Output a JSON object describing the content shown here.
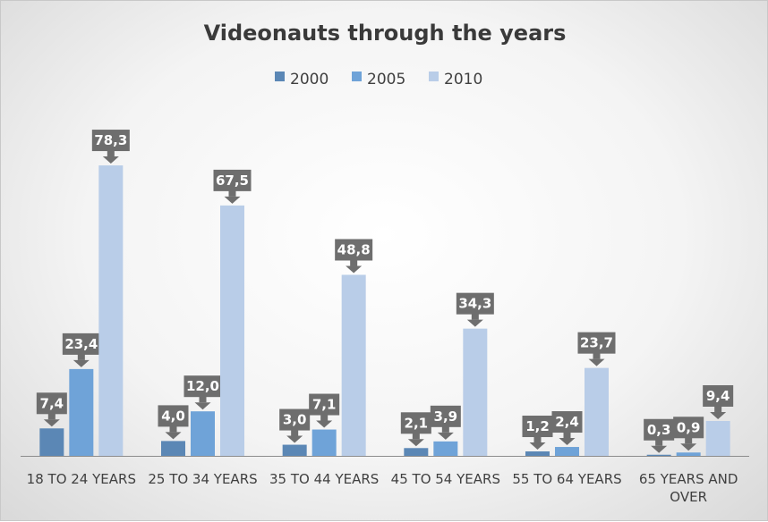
{
  "chart_data": {
    "type": "bar",
    "title": "Videonauts through the years",
    "categories": [
      [
        "18 TO 24 YEARS"
      ],
      [
        "25 TO 34 YEARS"
      ],
      [
        "35 TO 44 YEARS"
      ],
      [
        "45 TO 54 YEARS"
      ],
      [
        "55 TO 64 YEARS"
      ],
      [
        "65 YEARS AND",
        "OVER"
      ]
    ],
    "series": [
      {
        "name": "2000",
        "color": "#5b87b5",
        "values": [
          7.4,
          4.0,
          3.0,
          2.1,
          1.2,
          0.3
        ],
        "labels": [
          "7,4",
          "4,0",
          "3,0",
          "2,1",
          "1,2",
          "0,3"
        ]
      },
      {
        "name": "2005",
        "color": "#6fa3d8",
        "values": [
          23.4,
          12.0,
          7.1,
          3.9,
          2.4,
          0.9
        ],
        "labels": [
          "23,4",
          "12,0",
          "7,1",
          "3,9",
          "2,4",
          "0,9"
        ]
      },
      {
        "name": "2010",
        "color": "#b9cde8",
        "values": [
          78.3,
          67.5,
          48.8,
          34.3,
          23.7,
          9.4
        ],
        "labels": [
          "78,3",
          "67,5",
          "48,8",
          "34,3",
          "23,7",
          "9,4"
        ]
      }
    ],
    "ylim": [
      0,
      80
    ],
    "legend_position": "top",
    "grid": false,
    "data_label_color": "#6e6e6e"
  }
}
